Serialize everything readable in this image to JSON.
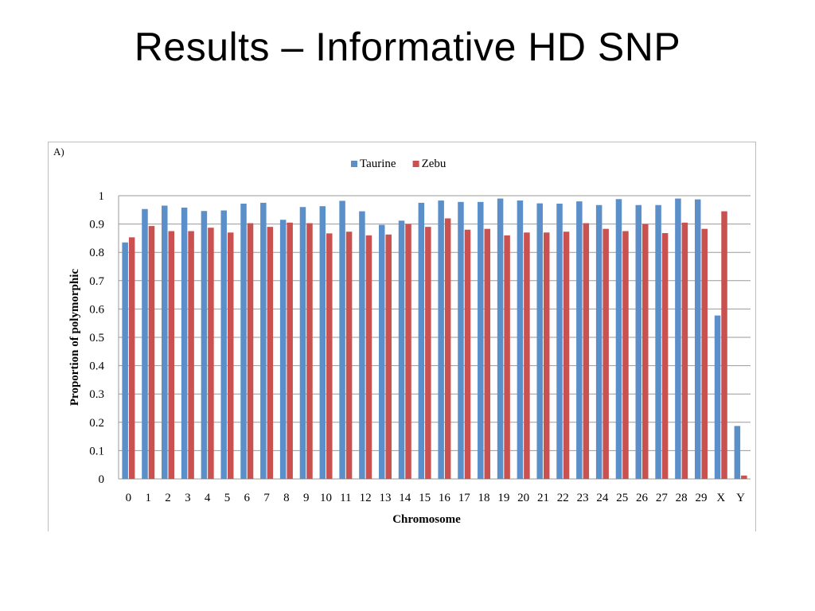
{
  "slide": {
    "title": "Results – Informative HD SNP"
  },
  "chart_data": {
    "type": "bar",
    "panel_label": "A)",
    "xlabel": "Chromosome",
    "ylabel": "Proportion of polymorphic",
    "ylim": [
      0,
      1
    ],
    "yticks": [
      "0",
      "0.1",
      "0.2",
      "0.3",
      "0.4",
      "0.5",
      "0.6",
      "0.7",
      "0.8",
      "0.9",
      "1"
    ],
    "grid": true,
    "legend_position": "top-center",
    "categories": [
      "0",
      "1",
      "2",
      "3",
      "4",
      "5",
      "6",
      "7",
      "8",
      "9",
      "10",
      "11",
      "12",
      "13",
      "14",
      "15",
      "16",
      "17",
      "18",
      "19",
      "20",
      "21",
      "22",
      "23",
      "24",
      "25",
      "26",
      "27",
      "28",
      "29",
      "X",
      "Y"
    ],
    "series": [
      {
        "name": "Taurine",
        "color": "#5b8fca",
        "values": [
          0.835,
          0.953,
          0.965,
          0.958,
          0.946,
          0.948,
          0.972,
          0.975,
          0.915,
          0.96,
          0.963,
          0.982,
          0.945,
          0.897,
          0.912,
          0.975,
          0.983,
          0.978,
          0.978,
          0.99,
          0.983,
          0.973,
          0.972,
          0.98,
          0.967,
          0.988,
          0.967,
          0.967,
          0.99,
          0.987,
          0.577,
          0.187
        ]
      },
      {
        "name": "Zebu",
        "color": "#c9514f",
        "values": [
          0.853,
          0.893,
          0.875,
          0.875,
          0.887,
          0.87,
          0.903,
          0.89,
          0.905,
          0.903,
          0.867,
          0.873,
          0.86,
          0.863,
          0.9,
          0.89,
          0.92,
          0.88,
          0.883,
          0.86,
          0.87,
          0.87,
          0.873,
          0.903,
          0.883,
          0.875,
          0.9,
          0.868,
          0.905,
          0.883,
          0.945,
          0.012
        ]
      }
    ]
  }
}
